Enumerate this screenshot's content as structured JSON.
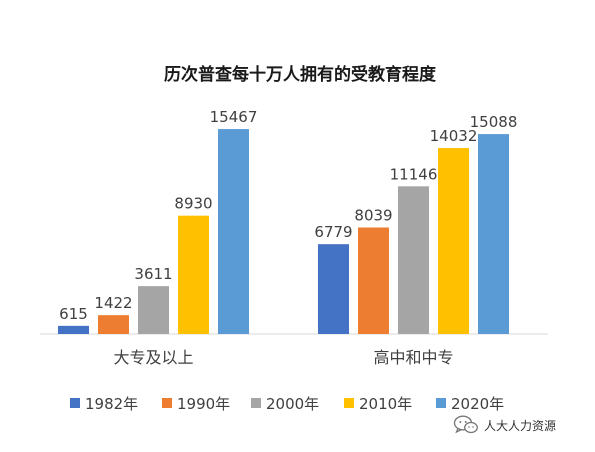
{
  "chart_data": {
    "type": "bar",
    "title": "历次普查每十万人拥有的受教育程度",
    "categories": [
      "大专及以上",
      "高中和中专"
    ],
    "series": [
      {
        "name": "1982年",
        "color": "#4472c4",
        "values": [
          615,
          6779
        ]
      },
      {
        "name": "1990年",
        "color": "#ed7d31",
        "values": [
          1422,
          8039
        ]
      },
      {
        "name": "2000年",
        "color": "#a5a5a5",
        "values": [
          3611,
          11146
        ]
      },
      {
        "name": "2010年",
        "color": "#ffc000",
        "values": [
          8930,
          14032
        ]
      },
      {
        "name": "2020年",
        "color": "#5b9bd5",
        "values": [
          15467,
          15088
        ]
      }
    ],
    "ylim": [
      0,
      16000
    ],
    "grid": false,
    "data_labels": true,
    "legend_position": "bottom"
  },
  "watermark": {
    "icon": "wechat-icon",
    "text": "人大人力资源"
  }
}
